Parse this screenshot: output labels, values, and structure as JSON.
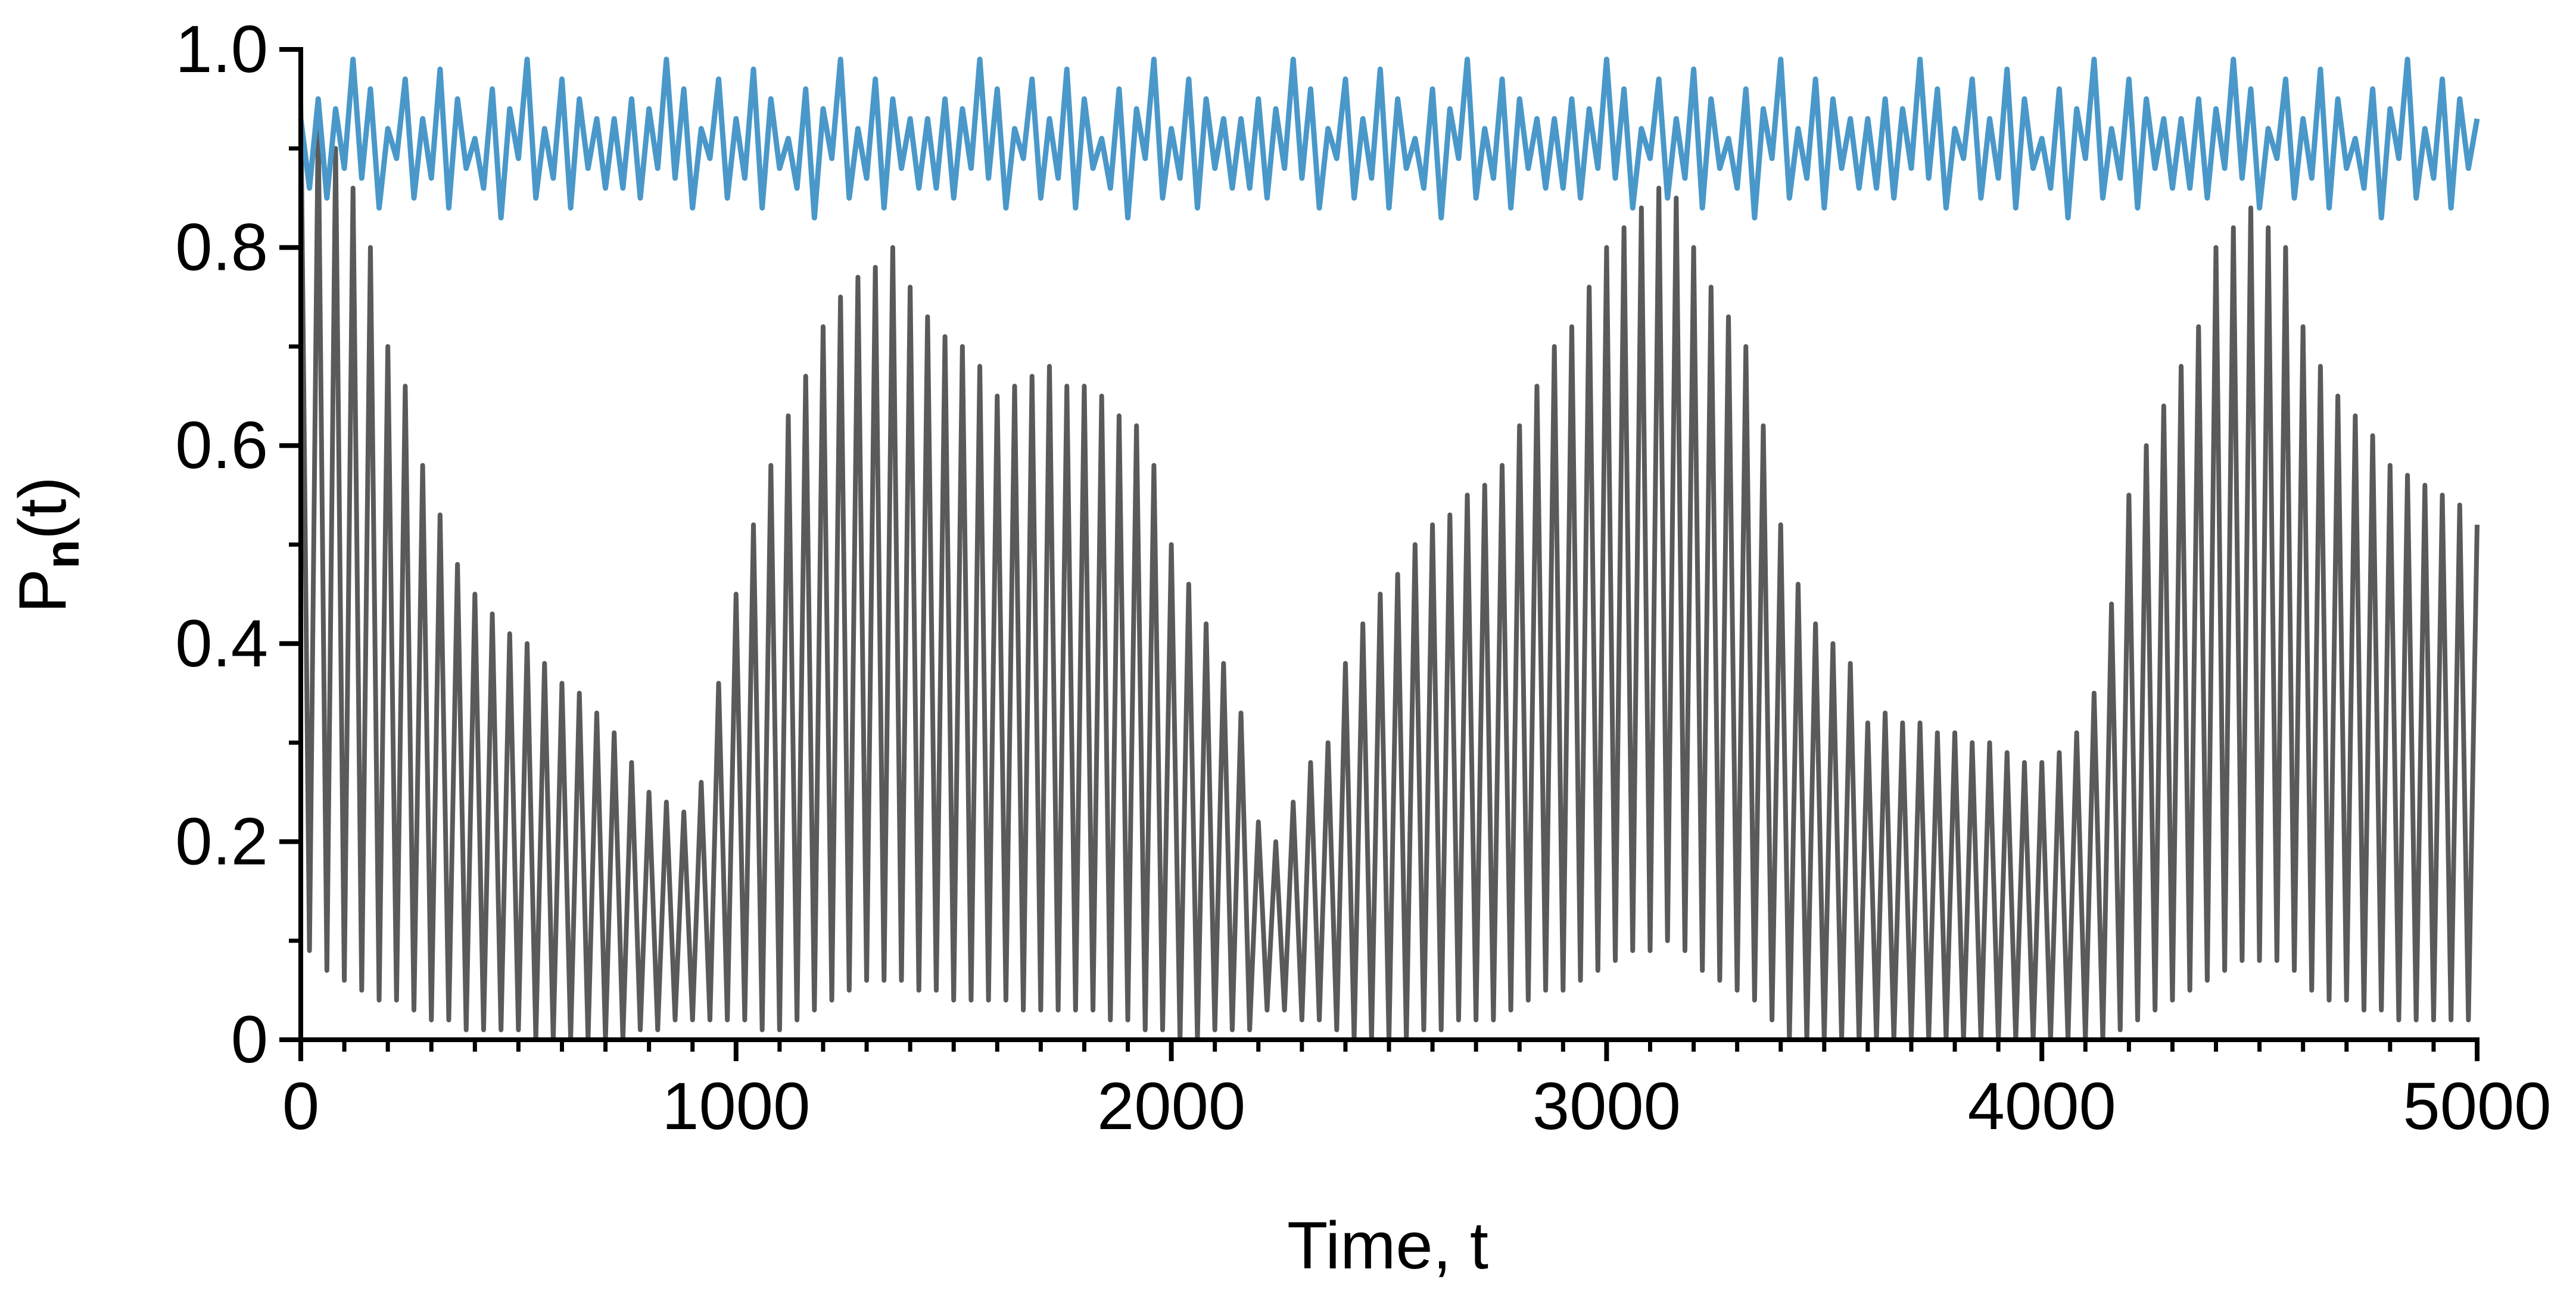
{
  "chart_data": {
    "type": "line",
    "xlabel": "Time, t",
    "ylabel": [
      "P",
      "n",
      "(t)"
    ],
    "xlim": [
      0,
      5000
    ],
    "xticks": [
      0,
      1000,
      2000,
      3000,
      4000,
      5000
    ],
    "xminorticks": [
      100,
      200,
      300,
      400,
      500,
      600,
      700,
      800,
      900,
      1100,
      1200,
      1300,
      1400,
      1500,
      1600,
      1700,
      1800,
      1900,
      2100,
      2200,
      2300,
      2400,
      2500,
      2600,
      2700,
      2800,
      2900,
      3100,
      3200,
      3300,
      3400,
      3500,
      3600,
      3700,
      3800,
      3900,
      4100,
      4200,
      4300,
      4400,
      4500,
      4600,
      4700,
      4800,
      4900
    ],
    "ylim": [
      0,
      1
    ],
    "yticks": [
      0,
      0.2,
      0.4,
      0.6,
      0.8,
      {
        "value": 1,
        "label": "1.0"
      }
    ],
    "yminorticks": [
      0.1,
      0.3,
      0.5,
      0.7,
      0.9
    ],
    "x": [
      0,
      20,
      40,
      60,
      80,
      100,
      120,
      140,
      160,
      180,
      200,
      220,
      240,
      260,
      280,
      300,
      320,
      340,
      360,
      380,
      400,
      420,
      440,
      460,
      480,
      500,
      520,
      540,
      560,
      580,
      600,
      620,
      640,
      660,
      680,
      700,
      720,
      740,
      760,
      780,
      800,
      820,
      840,
      860,
      880,
      900,
      920,
      940,
      960,
      980,
      1000,
      1020,
      1040,
      1060,
      1080,
      1100,
      1120,
      1140,
      1160,
      1180,
      1200,
      1220,
      1240,
      1260,
      1280,
      1300,
      1320,
      1340,
      1360,
      1380,
      1400,
      1420,
      1440,
      1460,
      1480,
      1500,
      1520,
      1540,
      1560,
      1580,
      1600,
      1620,
      1640,
      1660,
      1680,
      1700,
      1720,
      1740,
      1760,
      1780,
      1800,
      1820,
      1840,
      1860,
      1880,
      1900,
      1920,
      1940,
      1960,
      1980,
      2000,
      2020,
      2040,
      2060,
      2080,
      2100,
      2120,
      2140,
      2160,
      2180,
      2200,
      2220,
      2240,
      2260,
      2280,
      2300,
      2320,
      2340,
      2360,
      2380,
      2400,
      2420,
      2440,
      2460,
      2480,
      2500,
      2520,
      2540,
      2560,
      2580,
      2600,
      2620,
      2640,
      2660,
      2680,
      2700,
      2720,
      2740,
      2760,
      2780,
      2800,
      2820,
      2840,
      2860,
      2880,
      2900,
      2920,
      2940,
      2960,
      2980,
      3000,
      3020,
      3040,
      3060,
      3080,
      3100,
      3120,
      3140,
      3160,
      3180,
      3200,
      3220,
      3240,
      3260,
      3280,
      3300,
      3320,
      3340,
      3360,
      3380,
      3400,
      3420,
      3440,
      3460,
      3480,
      3500,
      3520,
      3540,
      3560,
      3580,
      3600,
      3620,
      3640,
      3660,
      3680,
      3700,
      3720,
      3740,
      3760,
      3780,
      3800,
      3820,
      3840,
      3860,
      3880,
      3900,
      3920,
      3940,
      3960,
      3980,
      4000,
      4020,
      4040,
      4060,
      4080,
      4100,
      4120,
      4140,
      4160,
      4180,
      4200,
      4220,
      4240,
      4260,
      4280,
      4300,
      4320,
      4340,
      4360,
      4380,
      4400,
      4420,
      4440,
      4460,
      4480,
      4500,
      4520,
      4540,
      4560,
      4580,
      4600,
      4620,
      4640,
      4660,
      4680,
      4700,
      4720,
      4740,
      4760,
      4780,
      4800,
      4820,
      4840,
      4860,
      4880,
      4900,
      4920,
      4940,
      4960,
      4980,
      5000
    ],
    "series": [
      {
        "color": "#5a5a5a",
        "values": [
          0.95,
          0.09,
          0.93,
          0.07,
          0.9,
          0.06,
          0.86,
          0.05,
          0.8,
          0.04,
          0.7,
          0.04,
          0.66,
          0.03,
          0.58,
          0.02,
          0.53,
          0.02,
          0.48,
          0.01,
          0.45,
          0.01,
          0.43,
          0.01,
          0.41,
          0.01,
          0.4,
          0,
          0.38,
          0,
          0.36,
          0,
          0.35,
          0,
          0.33,
          0,
          0.31,
          0,
          0.28,
          0.01,
          0.25,
          0.01,
          0.24,
          0.02,
          0.23,
          0.02,
          0.26,
          0.02,
          0.36,
          0.02,
          0.45,
          0.02,
          0.52,
          0.01,
          0.58,
          0.01,
          0.63,
          0.02,
          0.67,
          0.03,
          0.72,
          0.04,
          0.75,
          0.05,
          0.77,
          0.06,
          0.78,
          0.06,
          0.8,
          0.06,
          0.76,
          0.05,
          0.73,
          0.05,
          0.71,
          0.04,
          0.7,
          0.04,
          0.68,
          0.04,
          0.65,
          0.04,
          0.66,
          0.03,
          0.67,
          0.03,
          0.68,
          0.03,
          0.66,
          0.03,
          0.66,
          0.03,
          0.65,
          0.02,
          0.63,
          0.02,
          0.62,
          0.01,
          0.58,
          0.01,
          0.5,
          0,
          0.46,
          0,
          0.42,
          0.01,
          0.38,
          0.01,
          0.33,
          0.01,
          0.22,
          0.03,
          0.2,
          0.03,
          0.24,
          0.02,
          0.28,
          0.02,
          0.3,
          0.01,
          0.38,
          0,
          0.42,
          0,
          0.45,
          0,
          0.47,
          0,
          0.5,
          0.01,
          0.52,
          0.01,
          0.53,
          0.02,
          0.55,
          0.02,
          0.56,
          0.02,
          0.58,
          0.03,
          0.62,
          0.04,
          0.66,
          0.05,
          0.7,
          0.05,
          0.72,
          0.06,
          0.76,
          0.07,
          0.8,
          0.08,
          0.82,
          0.09,
          0.84,
          0.09,
          0.86,
          0.1,
          0.85,
          0.09,
          0.8,
          0.07,
          0.76,
          0.06,
          0.73,
          0.05,
          0.7,
          0.04,
          0.62,
          0.02,
          0.52,
          0,
          0.46,
          0,
          0.42,
          0,
          0.4,
          0,
          0.38,
          0,
          0.32,
          0,
          0.33,
          0,
          0.32,
          0,
          0.32,
          0,
          0.31,
          0,
          0.31,
          0,
          0.3,
          0,
          0.3,
          0,
          0.29,
          0,
          0.28,
          0,
          0.28,
          0,
          0.29,
          0,
          0.31,
          0,
          0.35,
          0,
          0.44,
          0.01,
          0.55,
          0.02,
          0.6,
          0.03,
          0.64,
          0.04,
          0.68,
          0.05,
          0.72,
          0.06,
          0.8,
          0.07,
          0.82,
          0.08,
          0.84,
          0.08,
          0.82,
          0.08,
          0.8,
          0.07,
          0.72,
          0.05,
          0.68,
          0.04,
          0.65,
          0.04,
          0.63,
          0.03,
          0.61,
          0.03,
          0.58,
          0.02,
          0.57,
          0.02,
          0.56,
          0.02,
          0.55,
          0.02,
          0.54,
          0.02,
          0.52
        ]
      },
      {
        "color": "#4a98c9",
        "values": [
          0.93,
          0.86,
          0.95,
          0.85,
          0.94,
          0.88,
          0.99,
          0.87,
          0.96,
          0.84,
          0.92,
          0.89,
          0.97,
          0.85,
          0.93,
          0.87,
          0.98,
          0.84,
          0.95,
          0.88,
          0.91,
          0.86,
          0.96,
          0.83,
          0.94,
          0.89,
          0.99,
          0.85,
          0.92,
          0.87,
          0.97,
          0.84,
          0.95,
          0.88,
          0.93,
          0.86,
          0.93,
          0.86,
          0.95,
          0.85,
          0.94,
          0.88,
          0.99,
          0.87,
          0.96,
          0.84,
          0.92,
          0.89,
          0.97,
          0.85,
          0.93,
          0.87,
          0.98,
          0.84,
          0.95,
          0.88,
          0.91,
          0.86,
          0.96,
          0.83,
          0.94,
          0.89,
          0.99,
          0.85,
          0.92,
          0.87,
          0.97,
          0.84,
          0.95,
          0.88,
          0.93,
          0.86,
          0.93,
          0.86,
          0.95,
          0.85,
          0.94,
          0.88,
          0.99,
          0.87,
          0.96,
          0.84,
          0.92,
          0.89,
          0.97,
          0.85,
          0.93,
          0.87,
          0.98,
          0.84,
          0.95,
          0.88,
          0.91,
          0.86,
          0.96,
          0.83,
          0.94,
          0.89,
          0.99,
          0.85,
          0.92,
          0.87,
          0.97,
          0.84,
          0.95,
          0.88,
          0.93,
          0.86,
          0.93,
          0.86,
          0.95,
          0.85,
          0.94,
          0.88,
          0.99,
          0.87,
          0.96,
          0.84,
          0.92,
          0.89,
          0.97,
          0.85,
          0.93,
          0.87,
          0.98,
          0.84,
          0.95,
          0.88,
          0.91,
          0.86,
          0.96,
          0.83,
          0.94,
          0.89,
          0.99,
          0.85,
          0.92,
          0.87,
          0.97,
          0.84,
          0.95,
          0.88,
          0.93,
          0.86,
          0.93,
          0.86,
          0.95,
          0.85,
          0.94,
          0.88,
          0.99,
          0.87,
          0.96,
          0.84,
          0.92,
          0.89,
          0.97,
          0.85,
          0.93,
          0.87,
          0.98,
          0.84,
          0.95,
          0.88,
          0.91,
          0.86,
          0.96,
          0.83,
          0.94,
          0.89,
          0.99,
          0.85,
          0.92,
          0.87,
          0.97,
          0.84,
          0.95,
          0.88,
          0.93,
          0.86,
          0.93,
          0.86,
          0.95,
          0.85,
          0.94,
          0.88,
          0.99,
          0.87,
          0.96,
          0.84,
          0.92,
          0.89,
          0.97,
          0.85,
          0.93,
          0.87,
          0.98,
          0.84,
          0.95,
          0.88,
          0.91,
          0.86,
          0.96,
          0.83,
          0.94,
          0.89,
          0.99,
          0.85,
          0.92,
          0.87,
          0.97,
          0.84,
          0.95,
          0.88,
          0.93,
          0.86,
          0.93,
          0.86,
          0.95,
          0.85,
          0.94,
          0.88,
          0.99,
          0.87,
          0.96,
          0.84,
          0.92,
          0.89,
          0.97,
          0.85,
          0.93,
          0.87,
          0.98,
          0.84,
          0.95,
          0.88,
          0.91,
          0.86,
          0.96,
          0.83,
          0.94,
          0.89,
          0.99,
          0.85,
          0.92,
          0.87,
          0.97,
          0.84,
          0.95,
          0.88,
          0.93
        ]
      }
    ]
  }
}
